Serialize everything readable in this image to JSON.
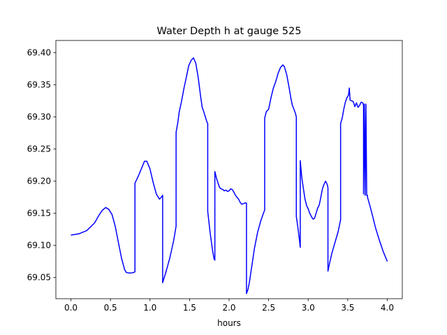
{
  "chart_data": {
    "type": "line",
    "title": "Water Depth h at gauge 525",
    "xlabel": "hours",
    "ylabel": "",
    "xlim": [
      -0.19,
      4.19
    ],
    "ylim": [
      69.017,
      69.419
    ],
    "xticks": [
      0.0,
      0.5,
      1.0,
      1.5,
      2.0,
      2.5,
      3.0,
      3.5,
      4.0
    ],
    "xtick_labels": [
      "0.0",
      "0.5",
      "1.0",
      "1.5",
      "2.0",
      "2.5",
      "3.0",
      "3.5",
      "4.0"
    ],
    "yticks": [
      69.05,
      69.1,
      69.15,
      69.2,
      69.25,
      69.3,
      69.35,
      69.4
    ],
    "ytick_labels": [
      "69.05",
      "69.10",
      "69.15",
      "69.20",
      "69.25",
      "69.30",
      "69.35",
      "69.40"
    ],
    "grid": false,
    "legend": "none",
    "series": [
      {
        "color": "#0000ff",
        "x": [
          0.0,
          0.1,
          0.2,
          0.3,
          0.36,
          0.4,
          0.44,
          0.48,
          0.52,
          0.56,
          0.6,
          0.64,
          0.68,
          0.7,
          0.73,
          0.76,
          0.8,
          0.81,
          0.81,
          0.83,
          0.86,
          0.9,
          0.93,
          0.96,
          1.0,
          1.04,
          1.08,
          1.12,
          1.15,
          1.16,
          1.16,
          1.2,
          1.25,
          1.3,
          1.33,
          1.33,
          1.35,
          1.37,
          1.4,
          1.43,
          1.46,
          1.49,
          1.52,
          1.55,
          1.58,
          1.61,
          1.64,
          1.66,
          1.68,
          1.7,
          1.72,
          1.73,
          1.73,
          1.76,
          1.79,
          1.81,
          1.82,
          1.82,
          1.84,
          1.86,
          1.88,
          1.9,
          1.92,
          1.94,
          1.96,
          1.98,
          2.0,
          2.02,
          2.04,
          2.06,
          2.08,
          2.1,
          2.12,
          2.14,
          2.16,
          2.18,
          2.2,
          2.22,
          2.22,
          2.22,
          2.24,
          2.26,
          2.29,
          2.32,
          2.36,
          2.4,
          2.44,
          2.45,
          2.45,
          2.47,
          2.5,
          2.53,
          2.56,
          2.59,
          2.62,
          2.65,
          2.68,
          2.7,
          2.73,
          2.76,
          2.78,
          2.8,
          2.82,
          2.84,
          2.85,
          2.85,
          2.87,
          2.89,
          2.9,
          2.9,
          2.91,
          2.92,
          2.94,
          2.96,
          2.98,
          3.0,
          3.02,
          3.04,
          3.06,
          3.08,
          3.1,
          3.12,
          3.14,
          3.16,
          3.18,
          3.2,
          3.22,
          3.24,
          3.25,
          3.25,
          3.27,
          3.3,
          3.34,
          3.38,
          3.41,
          3.41,
          3.43,
          3.45,
          3.47,
          3.49,
          3.51,
          3.52,
          3.53,
          3.55,
          3.57,
          3.59,
          3.61,
          3.63,
          3.65,
          3.67,
          3.69,
          3.7,
          3.7,
          3.71,
          3.72,
          3.73,
          3.74,
          3.75,
          3.75,
          3.78,
          3.81,
          3.85,
          3.9,
          3.95,
          4.0
        ],
        "values": [
          69.116,
          69.118,
          69.123,
          69.135,
          69.148,
          69.155,
          69.159,
          69.156,
          69.148,
          69.13,
          69.105,
          69.08,
          69.062,
          69.058,
          69.057,
          69.057,
          69.058,
          69.059,
          69.197,
          69.202,
          69.21,
          69.222,
          69.231,
          69.231,
          69.219,
          69.198,
          69.18,
          69.172,
          69.176,
          69.178,
          69.042,
          69.058,
          69.08,
          69.108,
          69.13,
          69.276,
          69.29,
          69.308,
          69.325,
          69.345,
          69.362,
          69.38,
          69.388,
          69.392,
          69.383,
          69.361,
          69.332,
          69.315,
          69.308,
          69.3,
          69.292,
          69.29,
          69.153,
          69.12,
          69.093,
          69.079,
          69.077,
          69.215,
          69.205,
          69.197,
          69.19,
          69.188,
          69.187,
          69.185,
          69.186,
          69.184,
          69.185,
          69.188,
          69.187,
          69.183,
          69.178,
          69.175,
          69.172,
          69.167,
          69.164,
          69.165,
          69.166,
          69.166,
          69.165,
          69.025,
          69.032,
          69.045,
          69.07,
          69.095,
          69.12,
          69.138,
          69.152,
          69.155,
          69.298,
          69.308,
          69.312,
          69.33,
          69.345,
          69.355,
          69.368,
          69.377,
          69.381,
          69.378,
          69.365,
          69.345,
          69.33,
          69.318,
          69.312,
          69.305,
          69.3,
          69.145,
          69.128,
          69.108,
          69.097,
          69.232,
          69.218,
          69.205,
          69.188,
          69.172,
          69.162,
          69.157,
          69.15,
          69.145,
          69.141,
          69.142,
          69.15,
          69.158,
          69.163,
          69.175,
          69.188,
          69.195,
          69.2,
          69.195,
          69.19,
          69.06,
          69.072,
          69.088,
          69.105,
          69.122,
          69.14,
          69.29,
          69.298,
          69.312,
          69.323,
          69.33,
          69.334,
          69.345,
          69.326,
          69.325,
          69.324,
          69.316,
          69.322,
          69.315,
          69.318,
          69.323,
          69.322,
          69.318,
          69.18,
          69.32,
          69.178,
          69.32,
          69.178,
          69.178,
          69.175,
          69.162,
          69.148,
          69.128,
          69.108,
          69.09,
          69.075
        ]
      }
    ]
  }
}
